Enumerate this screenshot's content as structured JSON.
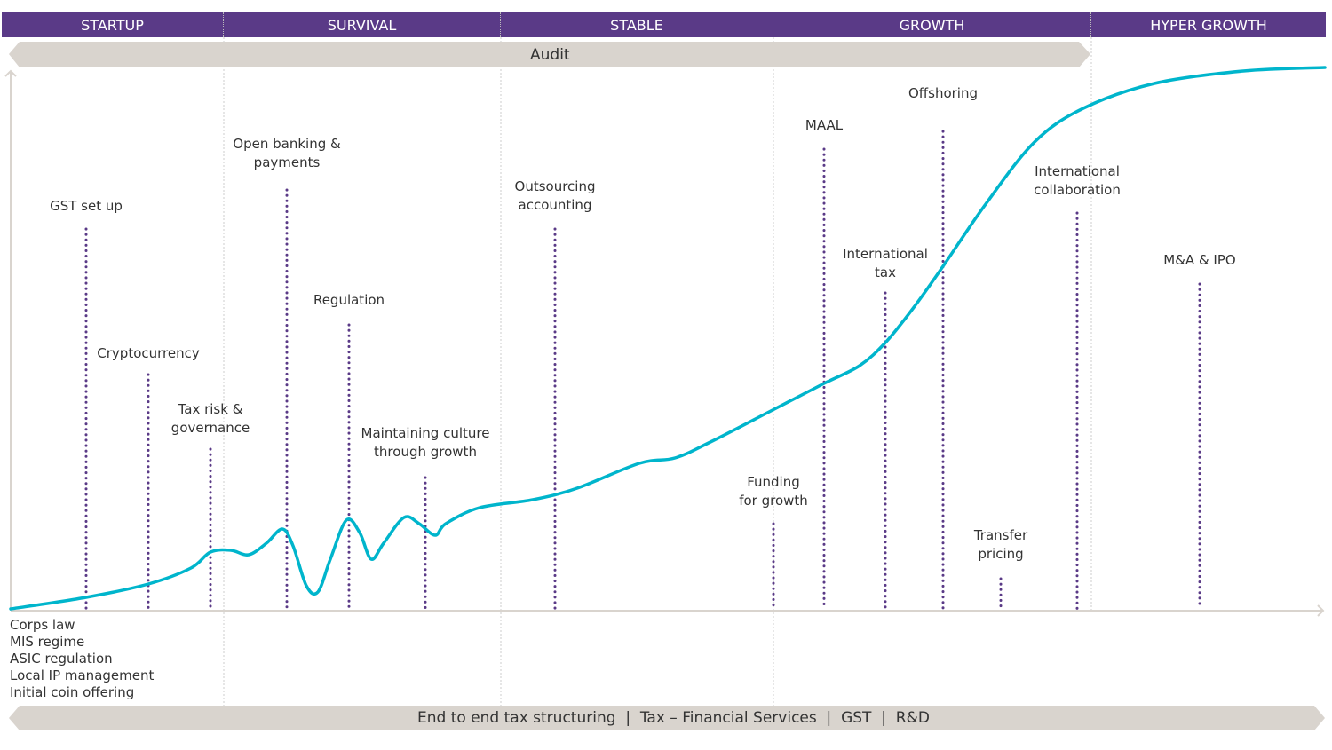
{
  "phases": [
    "STARTUP",
    "SURVIVAL",
    "STABLE",
    "GROWTH",
    "HYPER GROWTH"
  ],
  "top_band": "Audit",
  "bottom_band": "End to end tax structuring  |  Tax – Financial Services  |  GST  |  R&D",
  "milestones": [
    {
      "lines": [
        "GST set up"
      ]
    },
    {
      "lines": [
        "Cryptocurrency"
      ]
    },
    {
      "lines": [
        "Tax risk &",
        "governance"
      ]
    },
    {
      "lines": [
        "Open banking &",
        "payments"
      ]
    },
    {
      "lines": [
        "Regulation"
      ]
    },
    {
      "lines": [
        "Maintaining culture",
        "through growth"
      ]
    },
    {
      "lines": [
        "Outsourcing",
        "accounting"
      ]
    },
    {
      "lines": [
        "Funding",
        "for growth"
      ]
    },
    {
      "lines": [
        "MAAL"
      ]
    },
    {
      "lines": [
        "International",
        "tax"
      ]
    },
    {
      "lines": [
        "Offshoring"
      ]
    },
    {
      "lines": [
        "Transfer",
        "pricing"
      ]
    },
    {
      "lines": [
        "International",
        "collaboration"
      ]
    },
    {
      "lines": [
        "M&A & IPO"
      ]
    }
  ],
  "startup_items": [
    "Corps law",
    "MIS regime",
    "ASIC regulation",
    "Local IP management",
    "Initial coin offering"
  ],
  "colors": {
    "phase_bar": "#5a3a87",
    "curve": "#00b5cc",
    "band": "#d9d4ce",
    "dots": "#5a3a87"
  }
}
